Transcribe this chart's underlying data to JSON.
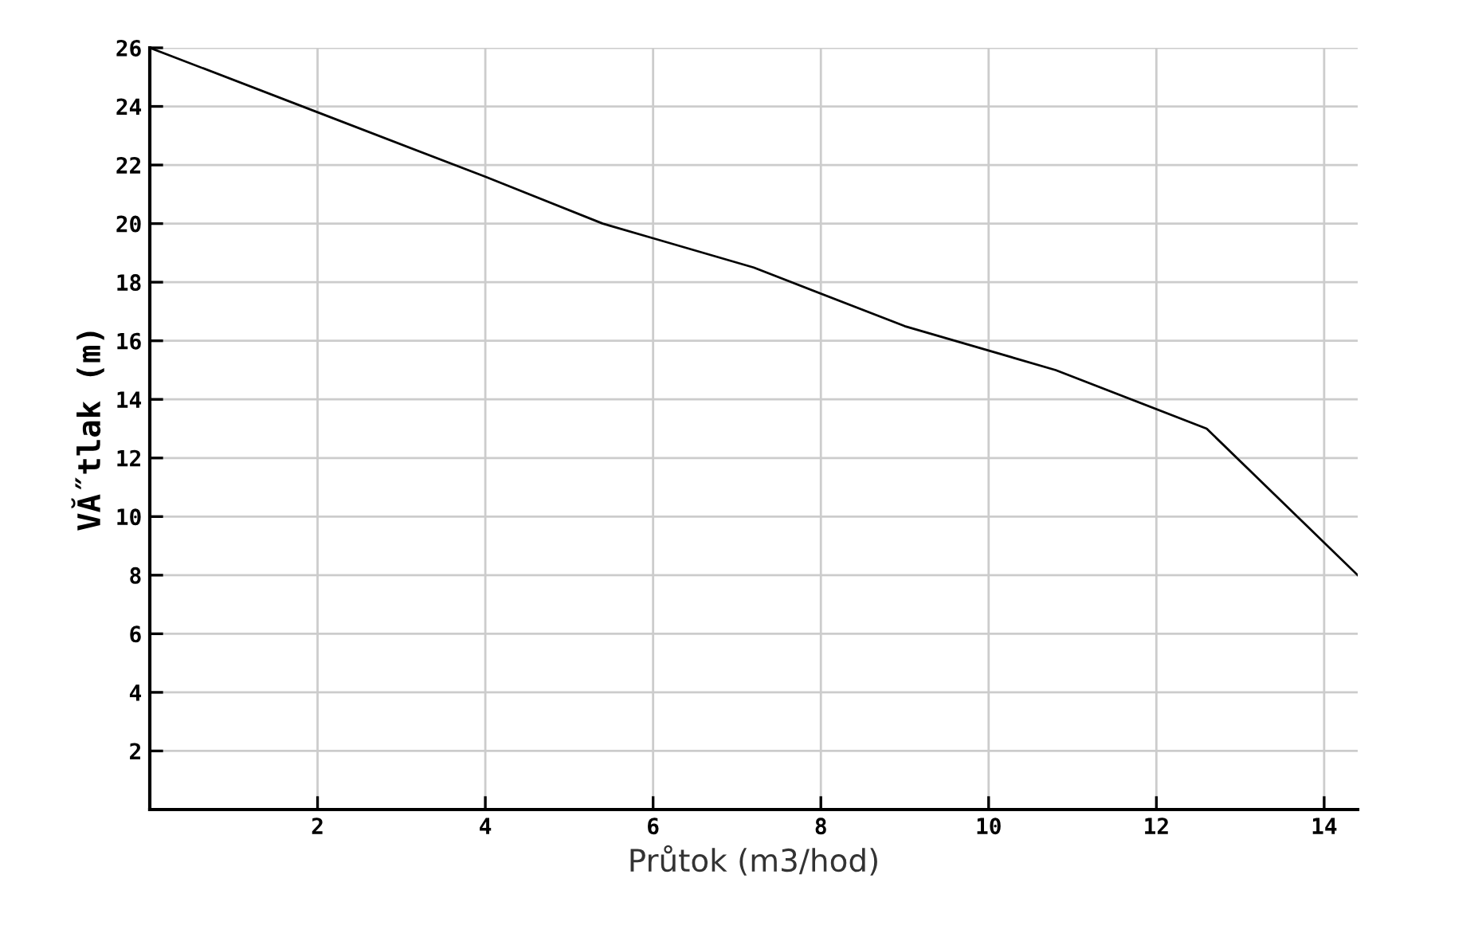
{
  "chart_data": {
    "type": "line",
    "xlabel": "Průtok (m3/hod)",
    "ylabel": "VĂ˝tlak (m)",
    "x": [
      0,
      2,
      4,
      5.4,
      6,
      7.2,
      9,
      10.8,
      12.6,
      14.4
    ],
    "series": [
      {
        "color": "#000000",
        "values": [
          26,
          23.8,
          21.6,
          20,
          19.5,
          18.5,
          16.5,
          15,
          13,
          8
        ]
      }
    ],
    "xlim": [
      0,
      14.4
    ],
    "ylim": [
      0,
      26
    ],
    "xticks": [
      2,
      4,
      6,
      8,
      10,
      12,
      14
    ],
    "yticks": [
      2,
      4,
      6,
      8,
      10,
      12,
      14,
      16,
      18,
      20,
      22,
      24,
      26
    ],
    "grid": true,
    "legend": false,
    "marker": "none",
    "line_style": "solid"
  }
}
